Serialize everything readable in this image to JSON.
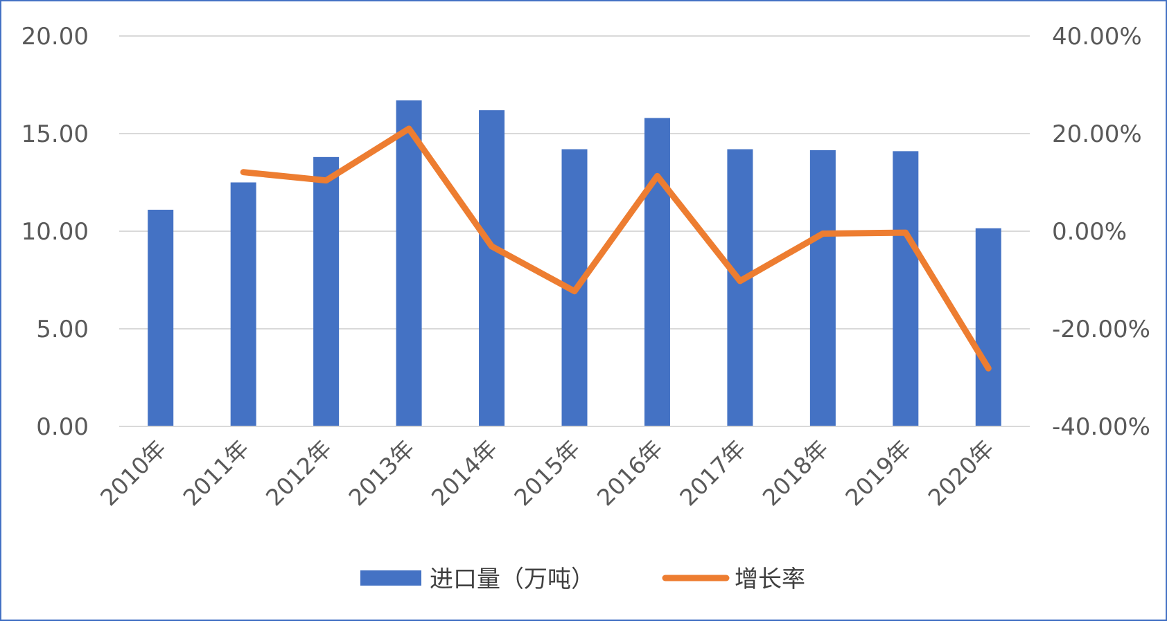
{
  "chart_data": {
    "type": "bar+line",
    "categories": [
      "2010年",
      "2011年",
      "2012年",
      "2013年",
      "2014年",
      "2015年",
      "2016年",
      "2017年",
      "2018年",
      "2019年",
      "2020年"
    ],
    "series": [
      {
        "name": "进口量（万吨）",
        "type": "bar",
        "axis": "left",
        "color": "#4472c4",
        "values": [
          11.1,
          12.5,
          13.8,
          16.7,
          16.2,
          14.2,
          15.8,
          14.2,
          14.15,
          14.1,
          10.15
        ]
      },
      {
        "name": "增长率",
        "type": "line",
        "axis": "right",
        "color": "#ed7d31",
        "values": [
          null,
          12.1,
          10.4,
          21.0,
          -3.1,
          -12.3,
          11.3,
          -10.2,
          -0.5,
          -0.3,
          -28.1
        ]
      }
    ],
    "y_left": {
      "ylim": [
        0,
        20
      ],
      "ticks": [
        0,
        5,
        10,
        15,
        20
      ],
      "tick_labels": [
        "0.00",
        "5.00",
        "10.00",
        "15.00",
        "20.00"
      ]
    },
    "y_right": {
      "ylim": [
        -40,
        40
      ],
      "ticks": [
        -40,
        -20,
        0,
        20,
        40
      ],
      "tick_labels": [
        "-40.00%",
        "-20.00%",
        "0.00%",
        "20.00%",
        "40.00%"
      ]
    },
    "grid": true,
    "legend_position": "bottom"
  }
}
